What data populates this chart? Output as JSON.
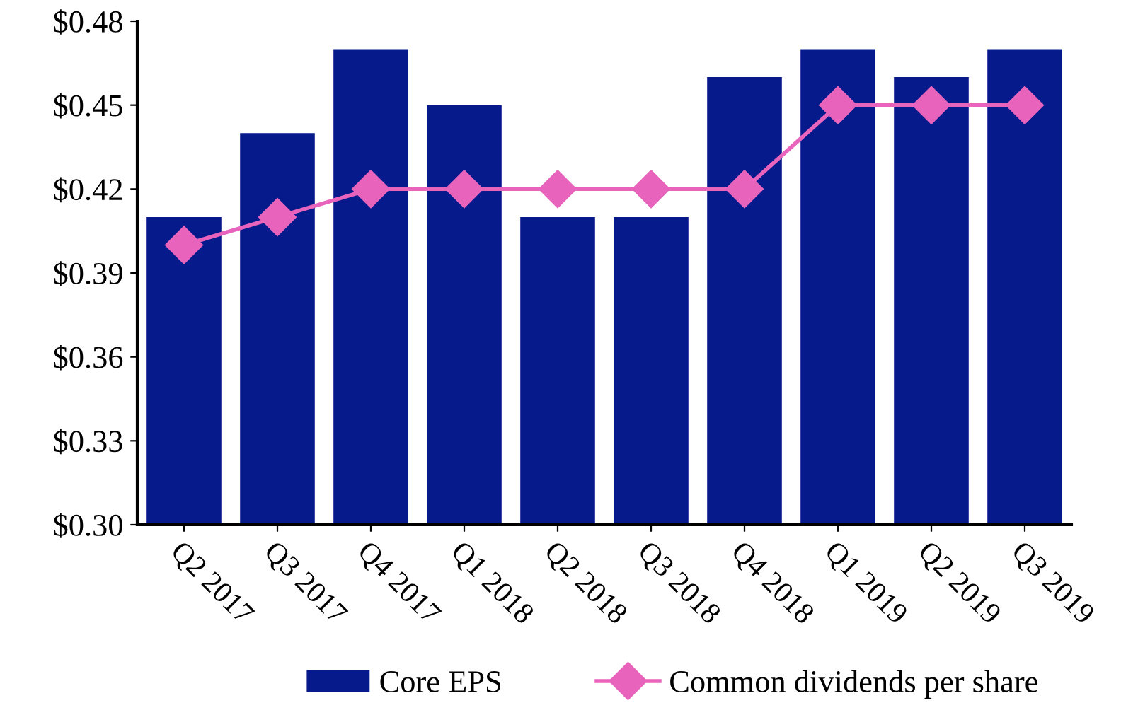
{
  "chart_data": {
    "type": "bar",
    "categories": [
      "Q2 2017",
      "Q3 2017",
      "Q4 2017",
      "Q1 2018",
      "Q2 2018",
      "Q3 2018",
      "Q4 2018",
      "Q1 2019",
      "Q2 2019",
      "Q3 2019"
    ],
    "series": [
      {
        "name": "Core EPS",
        "color": "#061a8c",
        "values": [
          0.41,
          0.44,
          0.47,
          0.45,
          0.41,
          0.41,
          0.46,
          0.47,
          0.46,
          0.47
        ]
      },
      {
        "name": "Common dividends per share",
        "type": "line",
        "color": "#e864bc",
        "marker": "diamond",
        "values": [
          0.4,
          0.41,
          0.42,
          0.42,
          0.42,
          0.42,
          0.42,
          0.45,
          0.45,
          0.45
        ]
      }
    ],
    "ylim": [
      0.3,
      0.48
    ],
    "yticks": [
      {
        "value": 0.3,
        "label": "$0.30"
      },
      {
        "value": 0.33,
        "label": "$0.33"
      },
      {
        "value": 0.36,
        "label": "$0.36"
      },
      {
        "value": 0.39,
        "label": "$0.39"
      },
      {
        "value": 0.42,
        "label": "$0.42"
      },
      {
        "value": 0.45,
        "label": "$0.45"
      },
      {
        "value": 0.48,
        "label": "$0.48"
      }
    ],
    "grid": false,
    "legend": "bottom"
  }
}
